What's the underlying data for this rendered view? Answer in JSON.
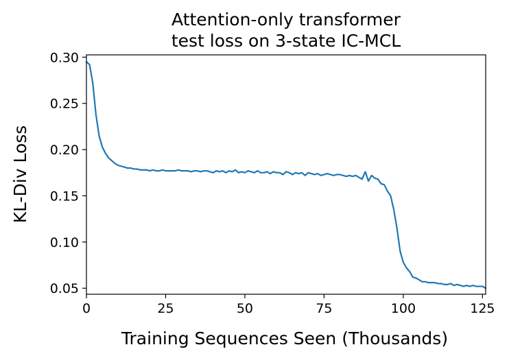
{
  "chart_data": {
    "type": "line",
    "title": [
      "Attention-only transformer",
      "test loss on 3-state IC-MCL"
    ],
    "xlabel": "Training Sequences Seen (Thousands)",
    "ylabel": "KL-Div Loss",
    "xlim": [
      0,
      126
    ],
    "ylim": [
      0.0435,
      0.3025
    ],
    "xticks": [
      0,
      25,
      50,
      75,
      100,
      125
    ],
    "yticks": [
      0.05,
      0.1,
      0.15,
      0.2,
      0.25,
      0.3
    ],
    "xtick_labels": [
      "0",
      "25",
      "50",
      "75",
      "100",
      "125"
    ],
    "ytick_labels": [
      "0.05",
      "0.10",
      "0.15",
      "0.20",
      "0.25",
      "0.30"
    ],
    "grid": false,
    "line_color": "#1f77b4",
    "series": [
      {
        "x": [
          0,
          1,
          2,
          3,
          4,
          5,
          6,
          7,
          8,
          9,
          10,
          11,
          12,
          13,
          14,
          15,
          16,
          17,
          18,
          19,
          20,
          21,
          22,
          23,
          24,
          25,
          26,
          27,
          28,
          29,
          30,
          31,
          32,
          33,
          34,
          35,
          36,
          37,
          38,
          39,
          40,
          41,
          42,
          43,
          44,
          45,
          46,
          47,
          48,
          49,
          50,
          51,
          52,
          53,
          54,
          55,
          56,
          57,
          58,
          59,
          60,
          61,
          62,
          63,
          64,
          65,
          66,
          67,
          68,
          69,
          70,
          71,
          72,
          73,
          74,
          75,
          76,
          77,
          78,
          79,
          80,
          81,
          82,
          83,
          84,
          85,
          86,
          87,
          88,
          89,
          90,
          91,
          92,
          93,
          94,
          95,
          96,
          97,
          98,
          99,
          100,
          101,
          102,
          103,
          104,
          105,
          106,
          107,
          108,
          109,
          110,
          111,
          112,
          113,
          114,
          115,
          116,
          117,
          118,
          119,
          120,
          121,
          122,
          123,
          124,
          125,
          126
        ],
        "y": [
          0.295,
          0.292,
          0.272,
          0.238,
          0.215,
          0.203,
          0.196,
          0.191,
          0.188,
          0.185,
          0.183,
          0.182,
          0.181,
          0.18,
          0.18,
          0.179,
          0.179,
          0.178,
          0.178,
          0.178,
          0.177,
          0.178,
          0.177,
          0.177,
          0.178,
          0.177,
          0.177,
          0.177,
          0.177,
          0.178,
          0.177,
          0.177,
          0.177,
          0.176,
          0.177,
          0.177,
          0.176,
          0.177,
          0.177,
          0.176,
          0.175,
          0.177,
          0.176,
          0.177,
          0.175,
          0.177,
          0.176,
          0.178,
          0.175,
          0.176,
          0.175,
          0.177,
          0.176,
          0.175,
          0.177,
          0.175,
          0.175,
          0.176,
          0.174,
          0.176,
          0.175,
          0.175,
          0.173,
          0.176,
          0.175,
          0.173,
          0.175,
          0.174,
          0.175,
          0.172,
          0.175,
          0.174,
          0.173,
          0.174,
          0.172,
          0.173,
          0.174,
          0.173,
          0.172,
          0.173,
          0.173,
          0.172,
          0.171,
          0.172,
          0.171,
          0.172,
          0.17,
          0.168,
          0.176,
          0.166,
          0.172,
          0.169,
          0.168,
          0.163,
          0.162,
          0.155,
          0.15,
          0.135,
          0.115,
          0.09,
          0.078,
          0.072,
          0.068,
          0.062,
          0.061,
          0.059,
          0.057,
          0.057,
          0.056,
          0.056,
          0.056,
          0.055,
          0.055,
          0.054,
          0.054,
          0.055,
          0.053,
          0.054,
          0.053,
          0.052,
          0.053,
          0.052,
          0.053,
          0.052,
          0.052,
          0.052,
          0.05
        ]
      }
    ]
  }
}
